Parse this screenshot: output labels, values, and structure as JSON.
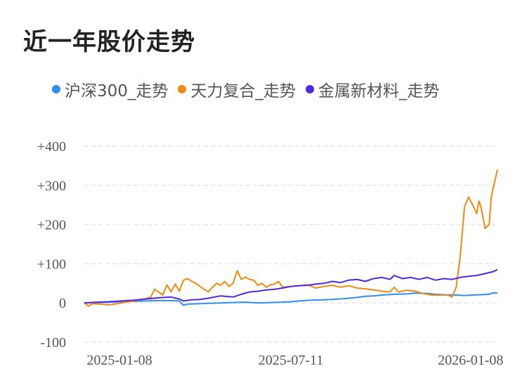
{
  "title": "近一年股价走势",
  "colors": {
    "grid": "#e6e6e6",
    "axis_text": "#555555"
  },
  "chart_data": {
    "type": "line",
    "ylim": [
      -100,
      400
    ],
    "y_ticks": [
      400,
      300,
      200,
      100,
      0,
      -100
    ],
    "y_tick_labels": [
      "+400",
      "+300",
      "+200",
      "+100",
      "0",
      "-100"
    ],
    "x_tick_labels": [
      "2025-01-08",
      "2025-07-11",
      "2026-01-08"
    ],
    "x_tick_positions": [
      0.085,
      0.5,
      0.935
    ],
    "grid": true,
    "legend_position": "top",
    "series": [
      {
        "name": "沪深300_走势",
        "color": "#2e8ff0",
        "points": [
          [
            0,
            0
          ],
          [
            0.03,
            1
          ],
          [
            0.06,
            2
          ],
          [
            0.09,
            3
          ],
          [
            0.12,
            4
          ],
          [
            0.15,
            5
          ],
          [
            0.18,
            6
          ],
          [
            0.21,
            6
          ],
          [
            0.23,
            5
          ],
          [
            0.24,
            -6
          ],
          [
            0.25,
            -3
          ],
          [
            0.28,
            -2
          ],
          [
            0.3,
            -1
          ],
          [
            0.33,
            0
          ],
          [
            0.36,
            1
          ],
          [
            0.39,
            2
          ],
          [
            0.42,
            0
          ],
          [
            0.45,
            1
          ],
          [
            0.48,
            2
          ],
          [
            0.5,
            3
          ],
          [
            0.52,
            5
          ],
          [
            0.55,
            7
          ],
          [
            0.58,
            8
          ],
          [
            0.6,
            9
          ],
          [
            0.63,
            11
          ],
          [
            0.66,
            14
          ],
          [
            0.68,
            17
          ],
          [
            0.7,
            18
          ],
          [
            0.72,
            20
          ],
          [
            0.75,
            22
          ],
          [
            0.78,
            23
          ],
          [
            0.8,
            25
          ],
          [
            0.83,
            24
          ],
          [
            0.85,
            22
          ],
          [
            0.87,
            21
          ],
          [
            0.9,
            20
          ],
          [
            0.92,
            19
          ],
          [
            0.94,
            20
          ],
          [
            0.96,
            21
          ],
          [
            0.98,
            22
          ],
          [
            0.99,
            26
          ],
          [
            1.0,
            25
          ]
        ]
      },
      {
        "name": "天力复合_走势",
        "color": "#f0890f",
        "points": [
          [
            0,
            0
          ],
          [
            0.01,
            -8
          ],
          [
            0.02,
            -2
          ],
          [
            0.04,
            -3
          ],
          [
            0.06,
            -5
          ],
          [
            0.08,
            -2
          ],
          [
            0.1,
            2
          ],
          [
            0.12,
            5
          ],
          [
            0.14,
            9
          ],
          [
            0.16,
            14
          ],
          [
            0.17,
            35
          ],
          [
            0.19,
            20
          ],
          [
            0.2,
            46
          ],
          [
            0.21,
            28
          ],
          [
            0.22,
            48
          ],
          [
            0.23,
            30
          ],
          [
            0.24,
            58
          ],
          [
            0.25,
            62
          ],
          [
            0.26,
            55
          ],
          [
            0.27,
            50
          ],
          [
            0.28,
            42
          ],
          [
            0.29,
            35
          ],
          [
            0.3,
            28
          ],
          [
            0.31,
            40
          ],
          [
            0.32,
            50
          ],
          [
            0.33,
            45
          ],
          [
            0.34,
            55
          ],
          [
            0.35,
            42
          ],
          [
            0.36,
            50
          ],
          [
            0.37,
            82
          ],
          [
            0.38,
            60
          ],
          [
            0.39,
            66
          ],
          [
            0.4,
            60
          ],
          [
            0.41,
            58
          ],
          [
            0.42,
            45
          ],
          [
            0.43,
            50
          ],
          [
            0.44,
            40
          ],
          [
            0.45,
            46
          ],
          [
            0.46,
            48
          ],
          [
            0.47,
            55
          ],
          [
            0.48,
            40
          ],
          [
            0.5,
            42
          ],
          [
            0.52,
            44
          ],
          [
            0.54,
            46
          ],
          [
            0.56,
            38
          ],
          [
            0.58,
            42
          ],
          [
            0.6,
            45
          ],
          [
            0.62,
            40
          ],
          [
            0.64,
            44
          ],
          [
            0.66,
            38
          ],
          [
            0.68,
            36
          ],
          [
            0.7,
            33
          ],
          [
            0.72,
            30
          ],
          [
            0.74,
            28
          ],
          [
            0.75,
            40
          ],
          [
            0.76,
            28
          ],
          [
            0.78,
            32
          ],
          [
            0.8,
            30
          ],
          [
            0.82,
            24
          ],
          [
            0.84,
            20
          ],
          [
            0.86,
            20
          ],
          [
            0.88,
            20
          ],
          [
            0.89,
            15
          ],
          [
            0.9,
            40
          ],
          [
            0.91,
            120
          ],
          [
            0.92,
            245
          ],
          [
            0.93,
            270
          ],
          [
            0.94,
            250
          ],
          [
            0.95,
            228
          ],
          [
            0.955,
            260
          ],
          [
            0.96,
            245
          ],
          [
            0.97,
            190
          ],
          [
            0.98,
            200
          ],
          [
            0.985,
            270
          ],
          [
            0.99,
            295
          ],
          [
            1.0,
            340
          ]
        ]
      },
      {
        "name": "金属新材料_走势",
        "color": "#5028e0",
        "points": [
          [
            0,
            0
          ],
          [
            0.03,
            2
          ],
          [
            0.06,
            3
          ],
          [
            0.09,
            5
          ],
          [
            0.12,
            7
          ],
          [
            0.15,
            10
          ],
          [
            0.18,
            13
          ],
          [
            0.21,
            15
          ],
          [
            0.23,
            10
          ],
          [
            0.24,
            5
          ],
          [
            0.26,
            8
          ],
          [
            0.28,
            9
          ],
          [
            0.3,
            12
          ],
          [
            0.33,
            18
          ],
          [
            0.36,
            15
          ],
          [
            0.38,
            22
          ],
          [
            0.4,
            28
          ],
          [
            0.42,
            30
          ],
          [
            0.44,
            33
          ],
          [
            0.46,
            35
          ],
          [
            0.48,
            38
          ],
          [
            0.5,
            42
          ],
          [
            0.52,
            44
          ],
          [
            0.54,
            45
          ],
          [
            0.56,
            48
          ],
          [
            0.58,
            50
          ],
          [
            0.6,
            55
          ],
          [
            0.62,
            52
          ],
          [
            0.64,
            58
          ],
          [
            0.66,
            60
          ],
          [
            0.68,
            55
          ],
          [
            0.7,
            62
          ],
          [
            0.72,
            65
          ],
          [
            0.74,
            60
          ],
          [
            0.75,
            70
          ],
          [
            0.77,
            62
          ],
          [
            0.79,
            65
          ],
          [
            0.81,
            60
          ],
          [
            0.83,
            65
          ],
          [
            0.85,
            58
          ],
          [
            0.87,
            62
          ],
          [
            0.89,
            60
          ],
          [
            0.91,
            65
          ],
          [
            0.93,
            68
          ],
          [
            0.95,
            70
          ],
          [
            0.97,
            75
          ],
          [
            0.99,
            80
          ],
          [
            1.0,
            85
          ]
        ]
      }
    ]
  }
}
